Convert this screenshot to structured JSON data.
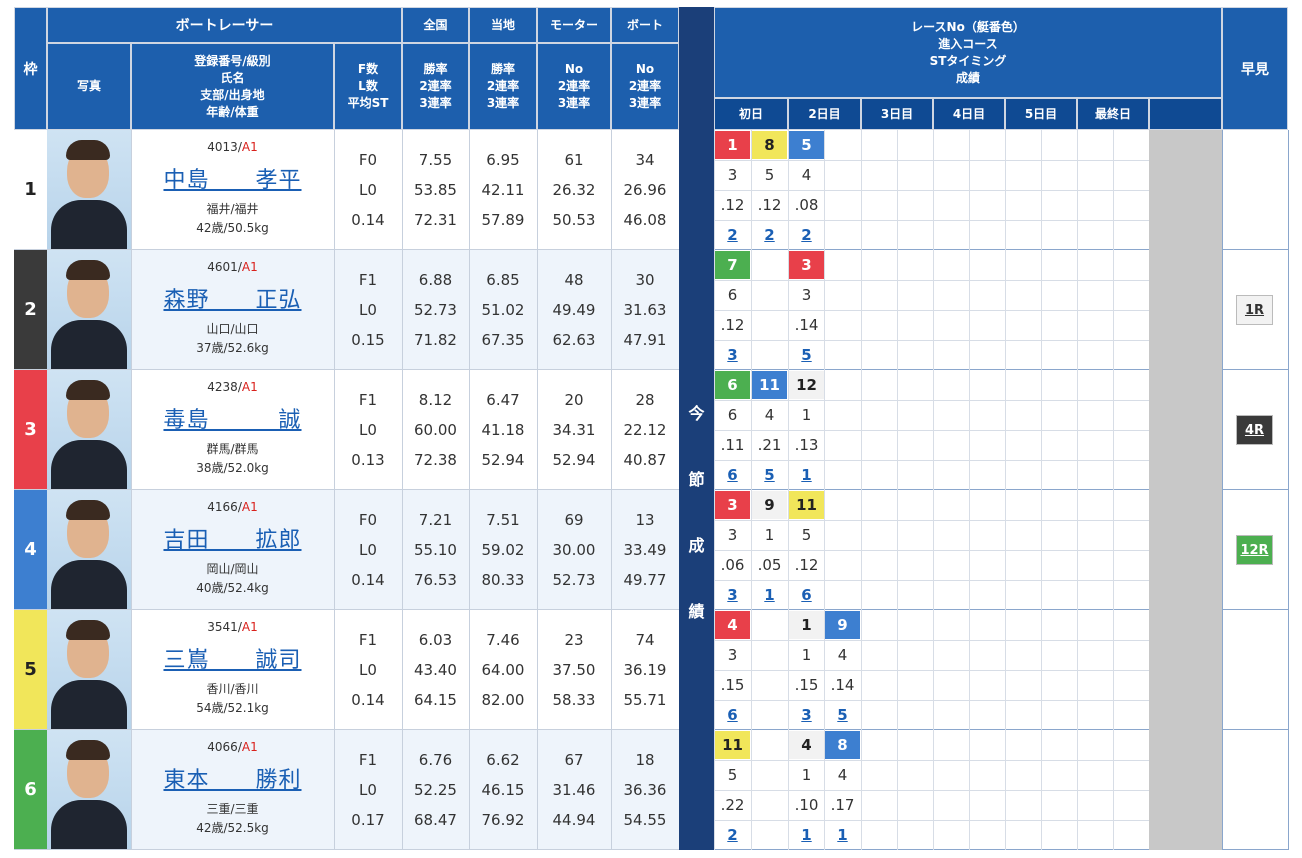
{
  "header": {
    "waku": "枠",
    "boat_racer": "ボートレーサー",
    "photo": "写真",
    "reg_info": [
      "登録番号/級別",
      "氏名",
      "支部/出身地",
      "年齢/体重"
    ],
    "f_info": [
      "F数",
      "L数",
      "平均ST"
    ],
    "zenkoku": "全国",
    "touchi": "当地",
    "motor": "モーター",
    "boat": "ボート",
    "rate_labels": [
      "勝率",
      "2連率",
      "3連率"
    ],
    "no_labels": [
      "No",
      "2連率",
      "3連率"
    ],
    "race_info": [
      "レースNo（艇番色）",
      "進入コース",
      "STタイミング",
      "成績"
    ],
    "days": [
      "初日",
      "2日目",
      "3日目",
      "4日目",
      "5日目",
      "最終日"
    ],
    "hayami": "早見",
    "konsetsu": [
      "今",
      "節",
      "成",
      "績"
    ]
  },
  "racers": [
    {
      "waku": "1",
      "waku_color": "#ffffff",
      "waku_text": "#222222",
      "reg": "4013",
      "class": "A1",
      "name": "中島　　孝平",
      "branch": "福井/福井",
      "age_weight": "42歳/50.5kg",
      "f": [
        "F0",
        "L0",
        "0.14"
      ],
      "zen": [
        "7.55",
        "53.85",
        "72.31"
      ],
      "tou": [
        "6.95",
        "42.11",
        "57.89"
      ],
      "motor": [
        "61",
        "26.32",
        "50.53"
      ],
      "boat": [
        "34",
        "26.96",
        "46.08"
      ],
      "races": [
        {
          "r": "1",
          "c": "#e8404a",
          "t": "#ffffff",
          "course": "3",
          "st": ".12",
          "res": "2"
        },
        {
          "r": "8",
          "c": "#f1e65a",
          "t": "#222222",
          "course": "5",
          "st": ".12",
          "res": "2"
        },
        {
          "r": "5",
          "c": "#3d7fd0",
          "t": "#ffffff",
          "course": "4",
          "st": ".08",
          "res": "2"
        }
      ],
      "hayami": null
    },
    {
      "waku": "2",
      "waku_color": "#3a3a3a",
      "waku_text": "#ffffff",
      "reg": "4601",
      "class": "A1",
      "name": "森野　　正弘",
      "branch": "山口/山口",
      "age_weight": "37歳/52.6kg",
      "f": [
        "F1",
        "L0",
        "0.15"
      ],
      "zen": [
        "6.88",
        "52.73",
        "71.82"
      ],
      "tou": [
        "6.85",
        "51.02",
        "67.35"
      ],
      "motor": [
        "48",
        "49.49",
        "62.63"
      ],
      "boat": [
        "30",
        "31.63",
        "47.91"
      ],
      "races": [
        {
          "r": "7",
          "c": "#4caf50",
          "t": "#ffffff",
          "course": "6",
          "st": ".12",
          "res": "3"
        },
        {
          "r": "",
          "c": "",
          "t": "",
          "course": "",
          "st": "",
          "res": ""
        },
        {
          "r": "3",
          "c": "#e8404a",
          "t": "#ffffff",
          "course": "3",
          "st": ".14",
          "res": "5"
        }
      ],
      "hayami": {
        "label": "1R",
        "bg": "#f2f2f2",
        "fg": "#333333"
      }
    },
    {
      "waku": "3",
      "waku_color": "#e8404a",
      "waku_text": "#ffffff",
      "reg": "4238",
      "class": "A1",
      "name": "毒島　　　誠",
      "branch": "群馬/群馬",
      "age_weight": "38歳/52.0kg",
      "f": [
        "F1",
        "L0",
        "0.13"
      ],
      "zen": [
        "8.12",
        "60.00",
        "72.38"
      ],
      "tou": [
        "6.47",
        "41.18",
        "52.94"
      ],
      "motor": [
        "20",
        "34.31",
        "52.94"
      ],
      "boat": [
        "28",
        "22.12",
        "40.87"
      ],
      "races": [
        {
          "r": "6",
          "c": "#4caf50",
          "t": "#ffffff",
          "course": "6",
          "st": ".11",
          "res": "6"
        },
        {
          "r": "11",
          "c": "#3d7fd0",
          "t": "#ffffff",
          "course": "4",
          "st": ".21",
          "res": "5"
        },
        {
          "r": "12",
          "c": "#f2f2f2",
          "t": "#222222",
          "course": "1",
          "st": ".13",
          "res": "1"
        }
      ],
      "hayami": {
        "label": "4R",
        "bg": "#3a3a3a",
        "fg": "#ffffff"
      }
    },
    {
      "waku": "4",
      "waku_color": "#3d7fd0",
      "waku_text": "#ffffff",
      "reg": "4166",
      "class": "A1",
      "name": "吉田　　拡郎",
      "branch": "岡山/岡山",
      "age_weight": "40歳/52.4kg",
      "f": [
        "F0",
        "L0",
        "0.14"
      ],
      "zen": [
        "7.21",
        "55.10",
        "76.53"
      ],
      "tou": [
        "7.51",
        "59.02",
        "80.33"
      ],
      "motor": [
        "69",
        "30.00",
        "52.73"
      ],
      "boat": [
        "13",
        "33.49",
        "49.77"
      ],
      "races": [
        {
          "r": "3",
          "c": "#e8404a",
          "t": "#ffffff",
          "course": "3",
          "st": ".06",
          "res": "3"
        },
        {
          "r": "9",
          "c": "#f2f2f2",
          "t": "#222222",
          "course": "1",
          "st": ".05",
          "res": "1"
        },
        {
          "r": "11",
          "c": "#f1e65a",
          "t": "#222222",
          "course": "5",
          "st": ".12",
          "res": "6"
        }
      ],
      "hayami": {
        "label": "12R",
        "bg": "#4caf50",
        "fg": "#ffffff"
      }
    },
    {
      "waku": "5",
      "waku_color": "#f1e65a",
      "waku_text": "#222222",
      "reg": "3541",
      "class": "A1",
      "name": "三嶌　　誠司",
      "branch": "香川/香川",
      "age_weight": "54歳/52.1kg",
      "f": [
        "F1",
        "L0",
        "0.14"
      ],
      "zen": [
        "6.03",
        "43.40",
        "64.15"
      ],
      "tou": [
        "7.46",
        "64.00",
        "82.00"
      ],
      "motor": [
        "23",
        "37.50",
        "58.33"
      ],
      "boat": [
        "74",
        "36.19",
        "55.71"
      ],
      "races": [
        {
          "r": "4",
          "c": "#e8404a",
          "t": "#ffffff",
          "course": "3",
          "st": ".15",
          "res": "6"
        },
        {
          "r": "",
          "c": "",
          "t": "",
          "course": "",
          "st": "",
          "res": ""
        },
        {
          "r": "1",
          "c": "#f2f2f2",
          "t": "#222222",
          "course": "1",
          "st": ".15",
          "res": "3"
        },
        {
          "r": "9",
          "c": "#3d7fd0",
          "t": "#ffffff",
          "course": "4",
          "st": ".14",
          "res": "5"
        }
      ],
      "hayami": null
    },
    {
      "waku": "6",
      "waku_color": "#4caf50",
      "waku_text": "#ffffff",
      "reg": "4066",
      "class": "A1",
      "name": "東本　　勝利",
      "branch": "三重/三重",
      "age_weight": "42歳/52.5kg",
      "f": [
        "F1",
        "L0",
        "0.17"
      ],
      "zen": [
        "6.76",
        "52.25",
        "68.47"
      ],
      "tou": [
        "6.62",
        "46.15",
        "76.92"
      ],
      "motor": [
        "67",
        "31.46",
        "44.94"
      ],
      "boat": [
        "18",
        "36.36",
        "54.55"
      ],
      "races": [
        {
          "r": "11",
          "c": "#f1e65a",
          "t": "#222222",
          "course": "5",
          "st": ".22",
          "res": "2"
        },
        {
          "r": "",
          "c": "",
          "t": "",
          "course": "",
          "st": "",
          "res": ""
        },
        {
          "r": "4",
          "c": "#f2f2f2",
          "t": "#222222",
          "course": "1",
          "st": ".10",
          "res": "1"
        },
        {
          "r": "8",
          "c": "#3d7fd0",
          "t": "#ffffff",
          "course": "4",
          "st": ".17",
          "res": "1"
        }
      ],
      "hayami": null
    }
  ]
}
